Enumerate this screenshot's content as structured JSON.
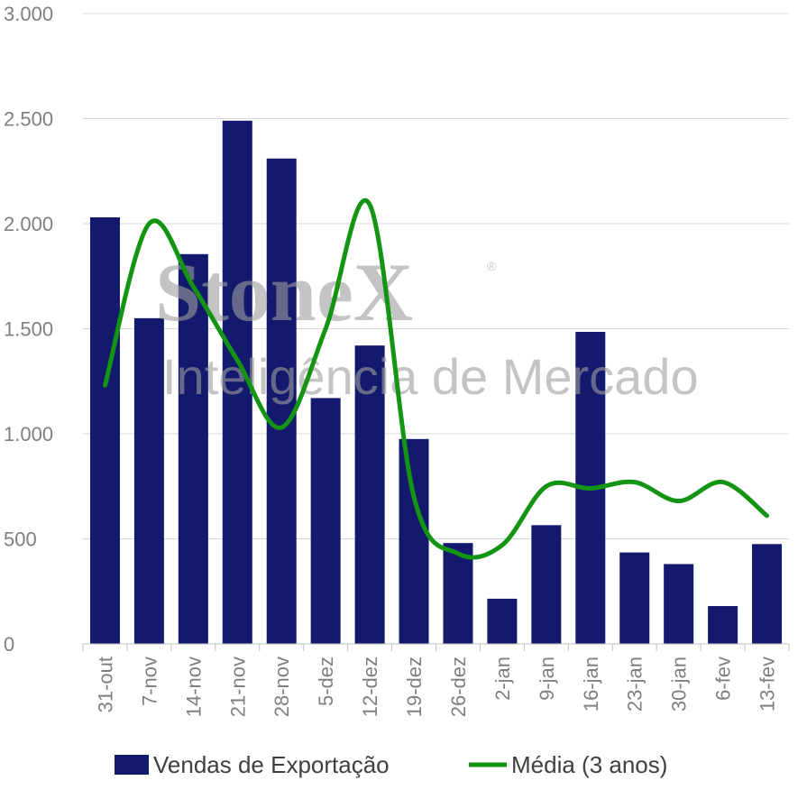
{
  "chart_data": {
    "type": "bar",
    "categories": [
      "31-out",
      "7-nov",
      "14-nov",
      "21-nov",
      "28-nov",
      "5-dez",
      "12-dez",
      "19-dez",
      "26-dez",
      "2-jan",
      "9-jan",
      "16-jan",
      "23-jan",
      "30-jan",
      "6-fev",
      "13-fev"
    ],
    "series": [
      {
        "name": "Vendas de Exportação",
        "type": "bar",
        "color": "#131a6e",
        "values": [
          2030,
          1550,
          1855,
          2490,
          2310,
          1170,
          1420,
          975,
          480,
          215,
          565,
          1485,
          435,
          380,
          180,
          475
        ]
      },
      {
        "name": "Média (3 anos)",
        "type": "line",
        "smooth": true,
        "color": "#139413",
        "values": [
          1230,
          2000,
          1700,
          1350,
          1030,
          1500,
          2090,
          700,
          430,
          470,
          750,
          740,
          770,
          680,
          770,
          610
        ]
      }
    ],
    "ylim": [
      0,
      3000
    ],
    "yticks": [
      0,
      500,
      1000,
      1500,
      2000,
      2500,
      3000
    ],
    "ytick_labels": [
      "0",
      "500",
      "1.000",
      "1.500",
      "2.000",
      "2.500",
      "3.000"
    ],
    "grid": true,
    "legend_position": "bottom"
  },
  "watermark": {
    "brand": "StoneX",
    "registered": "®",
    "tagline": "Inteligência de Mercado"
  }
}
